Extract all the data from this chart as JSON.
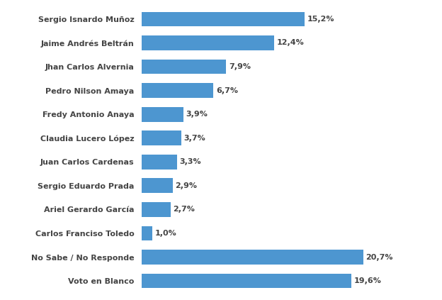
{
  "categories": [
    "Voto en Blanco",
    "No Sabe / No Responde",
    "Carlos Franciso Toledo",
    "Ariel Gerardo García",
    "Sergio Eduardo Prada",
    "Juan Carlos Cardenas",
    "Claudia Lucero López",
    "Fredy Antonio Anaya",
    "Pedro Nilson Amaya",
    "Jhan Carlos Alvernia",
    "Jaime Andrés Beltrán",
    "Sergio Isnardo Muñoz"
  ],
  "values": [
    19.6,
    20.7,
    1.0,
    2.7,
    2.9,
    3.3,
    3.7,
    3.9,
    6.7,
    7.9,
    12.4,
    15.2
  ],
  "labels": [
    "19,6%",
    "20,7%",
    "1,0%",
    "2,7%",
    "2,9%",
    "3,3%",
    "3,7%",
    "3,9%",
    "6,7%",
    "7,9%",
    "12,4%",
    "15,2%"
  ],
  "bar_color": "#4d96d0",
  "background_color": "#ffffff",
  "text_color": "#444444",
  "label_color": "#444444",
  "xlim": [
    0,
    26
  ],
  "bar_height": 0.62,
  "figsize": [
    6.24,
    4.23
  ],
  "dpi": 100,
  "label_fontsize": 8.0,
  "value_fontsize": 8.0
}
